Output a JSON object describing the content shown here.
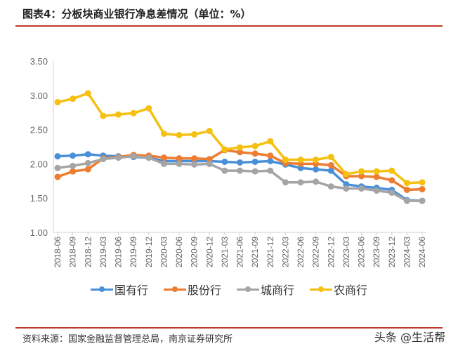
{
  "title": "图表4：分板块商业银行净息差情况（单位：%）",
  "source": "资料来源：国家金融监督管理总局，南京证券研究所",
  "watermark": "头条 @生活帮",
  "chart_data": {
    "type": "line",
    "ylim": [
      1.0,
      3.5
    ],
    "yticks": [
      "1.00",
      "1.50",
      "2.00",
      "2.50",
      "3.00",
      "3.50"
    ],
    "grid": false,
    "legend_position": "bottom",
    "categories": [
      "2018-06",
      "2018-09",
      "2018-12",
      "2019-03",
      "2019-06",
      "2019-09",
      "2019-12",
      "2020-03",
      "2020-06",
      "2020-09",
      "2020-12",
      "2021-03",
      "2021-06",
      "2021-09",
      "2021-12",
      "2022-03",
      "2022-06",
      "2022-09",
      "2022-12",
      "2023-03",
      "2023-06",
      "2023-09",
      "2023-12",
      "2024-03",
      "2024-06"
    ],
    "series": [
      {
        "name": "国有行",
        "color": "#4a90d9",
        "values": [
          2.11,
          2.12,
          2.14,
          2.12,
          2.11,
          2.1,
          2.09,
          2.04,
          2.04,
          2.04,
          2.04,
          2.03,
          2.02,
          2.03,
          2.04,
          1.99,
          1.94,
          1.92,
          1.9,
          1.7,
          1.67,
          1.65,
          1.62,
          1.47,
          1.46
        ]
      },
      {
        "name": "股份行",
        "color": "#ed7d31",
        "values": [
          1.81,
          1.89,
          1.92,
          2.08,
          2.1,
          2.13,
          2.12,
          2.09,
          2.08,
          2.08,
          2.07,
          2.2,
          2.17,
          2.15,
          2.12,
          2.01,
          2.0,
          2.0,
          1.98,
          1.82,
          1.82,
          1.81,
          1.76,
          1.62,
          1.63
        ]
      },
      {
        "name": "城商行",
        "color": "#a5a5a5",
        "values": [
          1.94,
          1.97,
          2.01,
          2.07,
          2.09,
          2.11,
          2.09,
          2.0,
          2.0,
          1.99,
          2.0,
          1.9,
          1.9,
          1.89,
          1.9,
          1.73,
          1.73,
          1.74,
          1.67,
          1.64,
          1.64,
          1.61,
          1.58,
          1.46,
          1.46
        ]
      },
      {
        "name": "农商行",
        "color": "#f5c010",
        "values": [
          2.9,
          2.95,
          3.03,
          2.7,
          2.72,
          2.74,
          2.81,
          2.44,
          2.42,
          2.43,
          2.48,
          2.21,
          2.24,
          2.26,
          2.33,
          2.06,
          2.06,
          2.06,
          2.1,
          1.85,
          1.89,
          1.89,
          1.9,
          1.72,
          1.73
        ]
      }
    ]
  }
}
